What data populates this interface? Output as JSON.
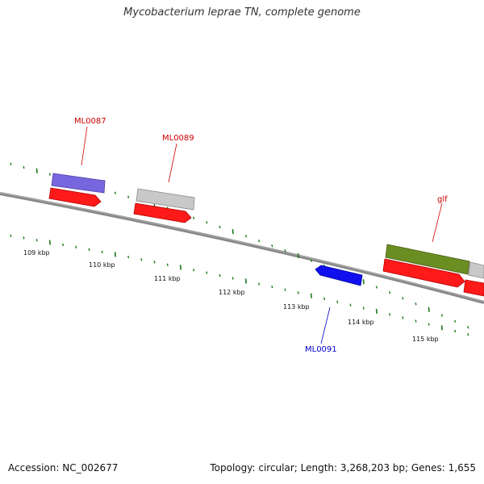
{
  "title": "Mycobacterium leprae TN, complete genome",
  "footer": {
    "accession": "Accession: NC_002677",
    "summary": "Topology: circular; Length: 3,268,203 bp; Genes: 1,655"
  },
  "colors": {
    "backbone": "#777777",
    "ticks": "#1a7a1a",
    "forward_cds": "#ff1a1a",
    "reverse_cds": "#1010ee",
    "label_red": "#cc0000",
    "label_blue": "#0000cc",
    "purple_gene": "#7766dd",
    "grey_gene": "#c8c8c8",
    "olive_gene": "#6b8e23"
  },
  "scale_labels": [
    "109 kbp",
    "110 kbp",
    "111 kbp",
    "112 kbp",
    "113 kbp",
    "114 kbp",
    "115 kbp"
  ],
  "genes": {
    "ml0087": "ML0087",
    "ml0089": "ML0089",
    "glf": "glf",
    "ml0091": "ML0091"
  }
}
